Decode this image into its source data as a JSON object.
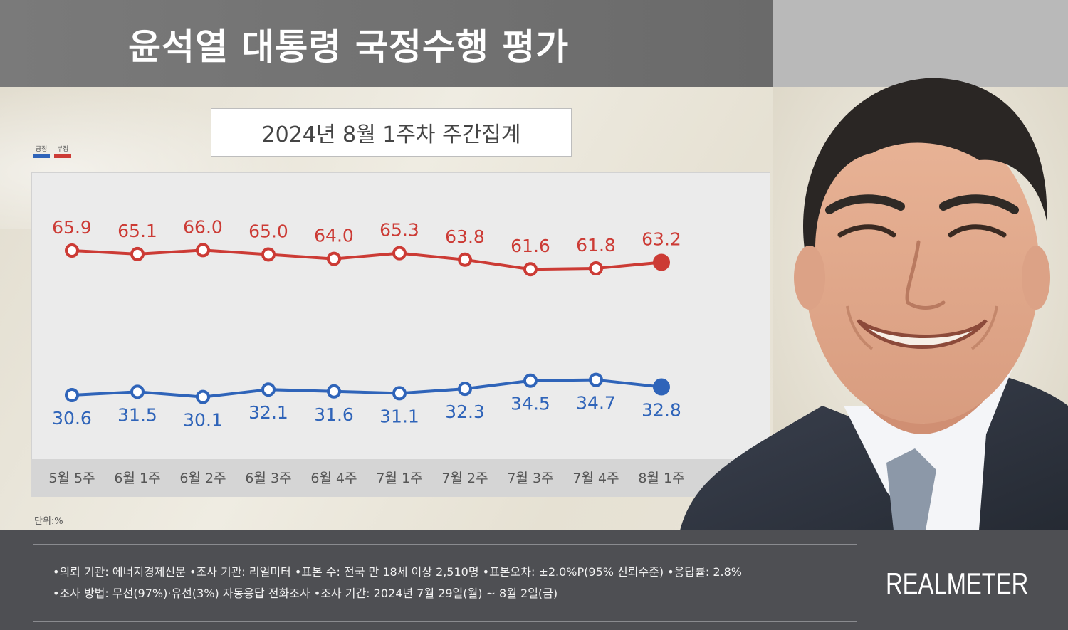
{
  "header": {
    "title": "윤석열 대통령 국정수행 평가"
  },
  "subtitle": "2024년 8월 1주차 주간집계",
  "unit_label": "단위:%",
  "colors": {
    "positive": "#2f64b9",
    "negative": "#cc3b35"
  },
  "chart_data": {
    "type": "line",
    "categories": [
      "5월 5주",
      "6월 1주",
      "6월 2주",
      "6월 3주",
      "6월 4주",
      "7월 1주",
      "7월 2주",
      "7월 3주",
      "7월 4주",
      "8월 1주"
    ],
    "series": [
      {
        "name": "부정",
        "color": "#cc3b35",
        "values": [
          65.9,
          65.1,
          66.0,
          65.0,
          64.0,
          65.3,
          63.8,
          61.6,
          61.8,
          63.2
        ]
      },
      {
        "name": "긍정",
        "color": "#2f64b9",
        "values": [
          30.6,
          31.5,
          30.1,
          32.1,
          31.6,
          31.1,
          32.3,
          34.5,
          34.7,
          32.8
        ]
      }
    ],
    "legend": {
      "placement": "top-left",
      "items": [
        "긍정",
        "부정"
      ]
    },
    "grid": false
  },
  "footer": {
    "line1": "•의뢰 기관: 에너지경제신문 •조사 기관: 리얼미터 •표본 수: 전국 만 18세 이상 2,510명 •표본오차: ±2.0%P(95% 신뢰수준) •응답률: 2.8%",
    "line2": "•조사 방법: 무선(97%)·유선(3%) 자동응답 전화조사 •조사 기간: 2024년 7월 29일(월) ~ 8월 2일(금)",
    "brand": "REALMETER"
  }
}
